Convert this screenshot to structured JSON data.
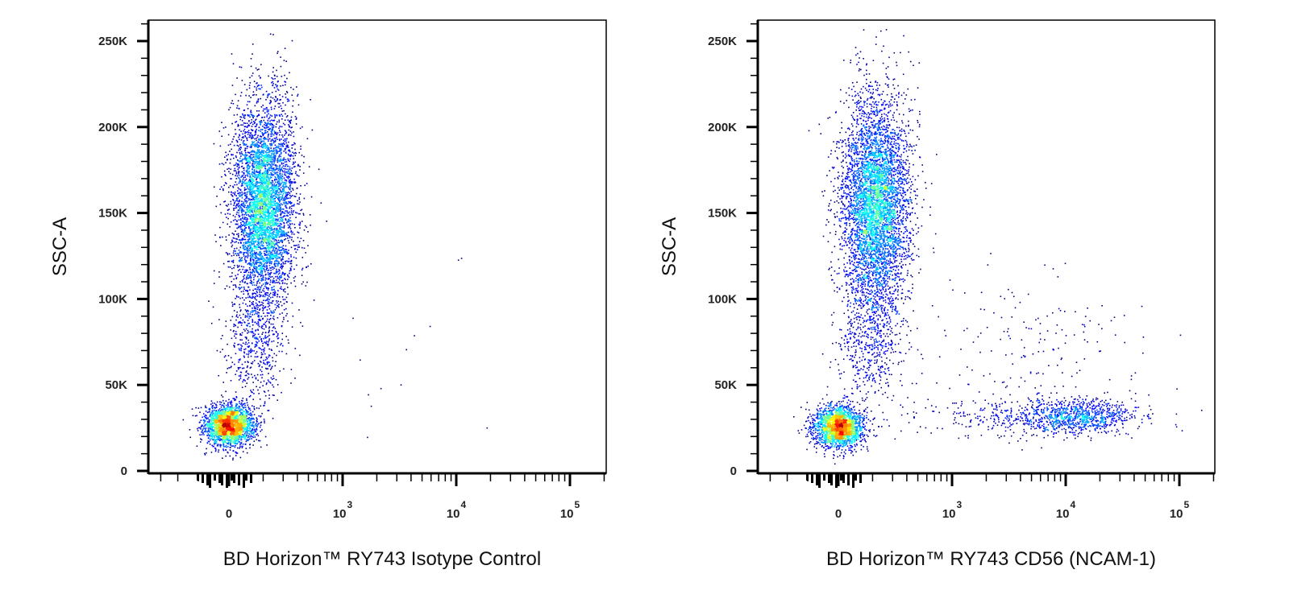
{
  "chart_data": [
    {
      "type": "scatter",
      "xlabel": "BD Horizon™ RY743  Isotype Control",
      "ylabel": "SSC-A",
      "x_scale": "biexponential",
      "xlim": [
        -700,
        180000
      ],
      "ylim": [
        0,
        262000
      ],
      "x_ticks": [
        "0",
        "10",
        "10",
        "10"
      ],
      "x_tick_exponents": [
        "",
        "3",
        "4",
        "5"
      ],
      "x_tick_values": [
        0,
        1000,
        10000,
        100000
      ],
      "y_ticks": [
        "0",
        "50K",
        "100K",
        "150K",
        "200K",
        "250K"
      ],
      "y_tick_values": [
        0,
        50000,
        100000,
        150000,
        200000,
        250000
      ],
      "color_mode": "density (blue low → red high)",
      "populations": [
        {
          "x_mean": 0,
          "x_sd": 110,
          "y_mean": 27000,
          "y_sd": 6000,
          "count": 2200,
          "x_scale": "linear"
        },
        {
          "x_mean": 300,
          "x_sd": 140,
          "y_mean": 155000,
          "y_sd": 30000,
          "count": 4800,
          "x_scale": "linear"
        },
        {
          "x_mean": 220,
          "x_sd": 140,
          "y_mean": 75000,
          "y_sd": 18000,
          "count": 500,
          "x_scale": "linear"
        },
        {
          "x_mean": 1500,
          "x_sd": 0.5,
          "y_mean": 80000,
          "y_sd": 50000,
          "count": 20,
          "x_scale": "log"
        }
      ]
    },
    {
      "type": "scatter",
      "xlabel": "BD Horizon™ RY743  CD56 (NCAM-1)",
      "ylabel": "SSC-A",
      "x_scale": "biexponential",
      "xlim": [
        -700,
        180000
      ],
      "ylim": [
        0,
        262000
      ],
      "x_ticks": [
        "0",
        "10",
        "10",
        "10"
      ],
      "x_tick_exponents": [
        "",
        "3",
        "4",
        "5"
      ],
      "x_tick_values": [
        0,
        1000,
        10000,
        100000
      ],
      "y_ticks": [
        "0",
        "50K",
        "100K",
        "150K",
        "200K",
        "250K"
      ],
      "y_tick_values": [
        0,
        50000,
        100000,
        150000,
        200000,
        250000
      ],
      "color_mode": "density (blue low → red high)",
      "populations": [
        {
          "x_mean": 0,
          "x_sd": 110,
          "y_mean": 26000,
          "y_sd": 6000,
          "count": 2000,
          "x_scale": "linear"
        },
        {
          "x_mean": 320,
          "x_sd": 150,
          "y_mean": 155000,
          "y_sd": 32000,
          "count": 4800,
          "x_scale": "linear"
        },
        {
          "x_mean": 260,
          "x_sd": 150,
          "y_mean": 75000,
          "y_sd": 18000,
          "count": 500,
          "x_scale": "linear"
        },
        {
          "x_mean": 12000,
          "x_sd": 0.28,
          "y_mean": 32000,
          "y_sd": 5000,
          "count": 900,
          "x_scale": "log"
        },
        {
          "x_mean": 3000,
          "x_sd": 0.4,
          "y_mean": 32000,
          "y_sd": 6000,
          "count": 250,
          "x_scale": "log"
        },
        {
          "x_mean": 5000,
          "x_sd": 0.5,
          "y_mean": 75000,
          "y_sd": 20000,
          "count": 160,
          "x_scale": "log"
        }
      ]
    }
  ]
}
